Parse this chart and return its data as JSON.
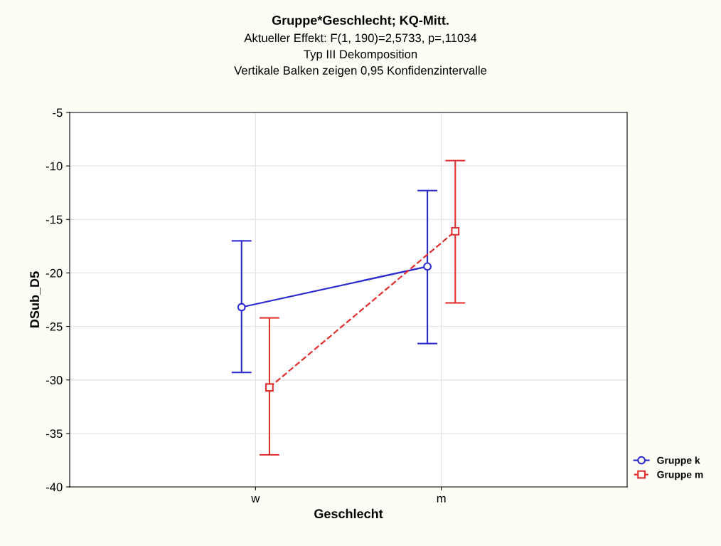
{
  "chart_data": {
    "type": "line",
    "title": "Gruppe*Geschlecht; KQ-Mitt.",
    "subtitle": "Aktueller Effekt: F(1, 190)=2,5733, p=,11034\nTyp III Dekomposition\nVertikale Balken zeigen 0,95 Konfidenzintervalle",
    "xlabel": "Geschlecht",
    "ylabel": "DSub_D5",
    "categories": [
      "w",
      "m"
    ],
    "series": [
      {
        "name": "Gruppe k",
        "color": "#2b2bd0",
        "values": [
          -23.2,
          -19.4
        ],
        "errors": [
          [
            -29.3,
            -17.0
          ],
          [
            -26.6,
            -12.3
          ]
        ],
        "marker": "circle",
        "line_style": "solid"
      },
      {
        "name": "Gruppe m",
        "color": "#e03030",
        "values": [
          -30.7,
          -16.1
        ],
        "errors": [
          [
            -37.0,
            -24.2
          ],
          [
            -22.8,
            -9.5
          ]
        ],
        "marker": "square",
        "line_style": "dashed"
      }
    ],
    "ylim": [
      -40,
      -5
    ],
    "yticks": [
      -40,
      -35,
      -30,
      -25,
      -20,
      -15,
      -10,
      -5
    ],
    "grid": true,
    "legend": "bottom right"
  }
}
